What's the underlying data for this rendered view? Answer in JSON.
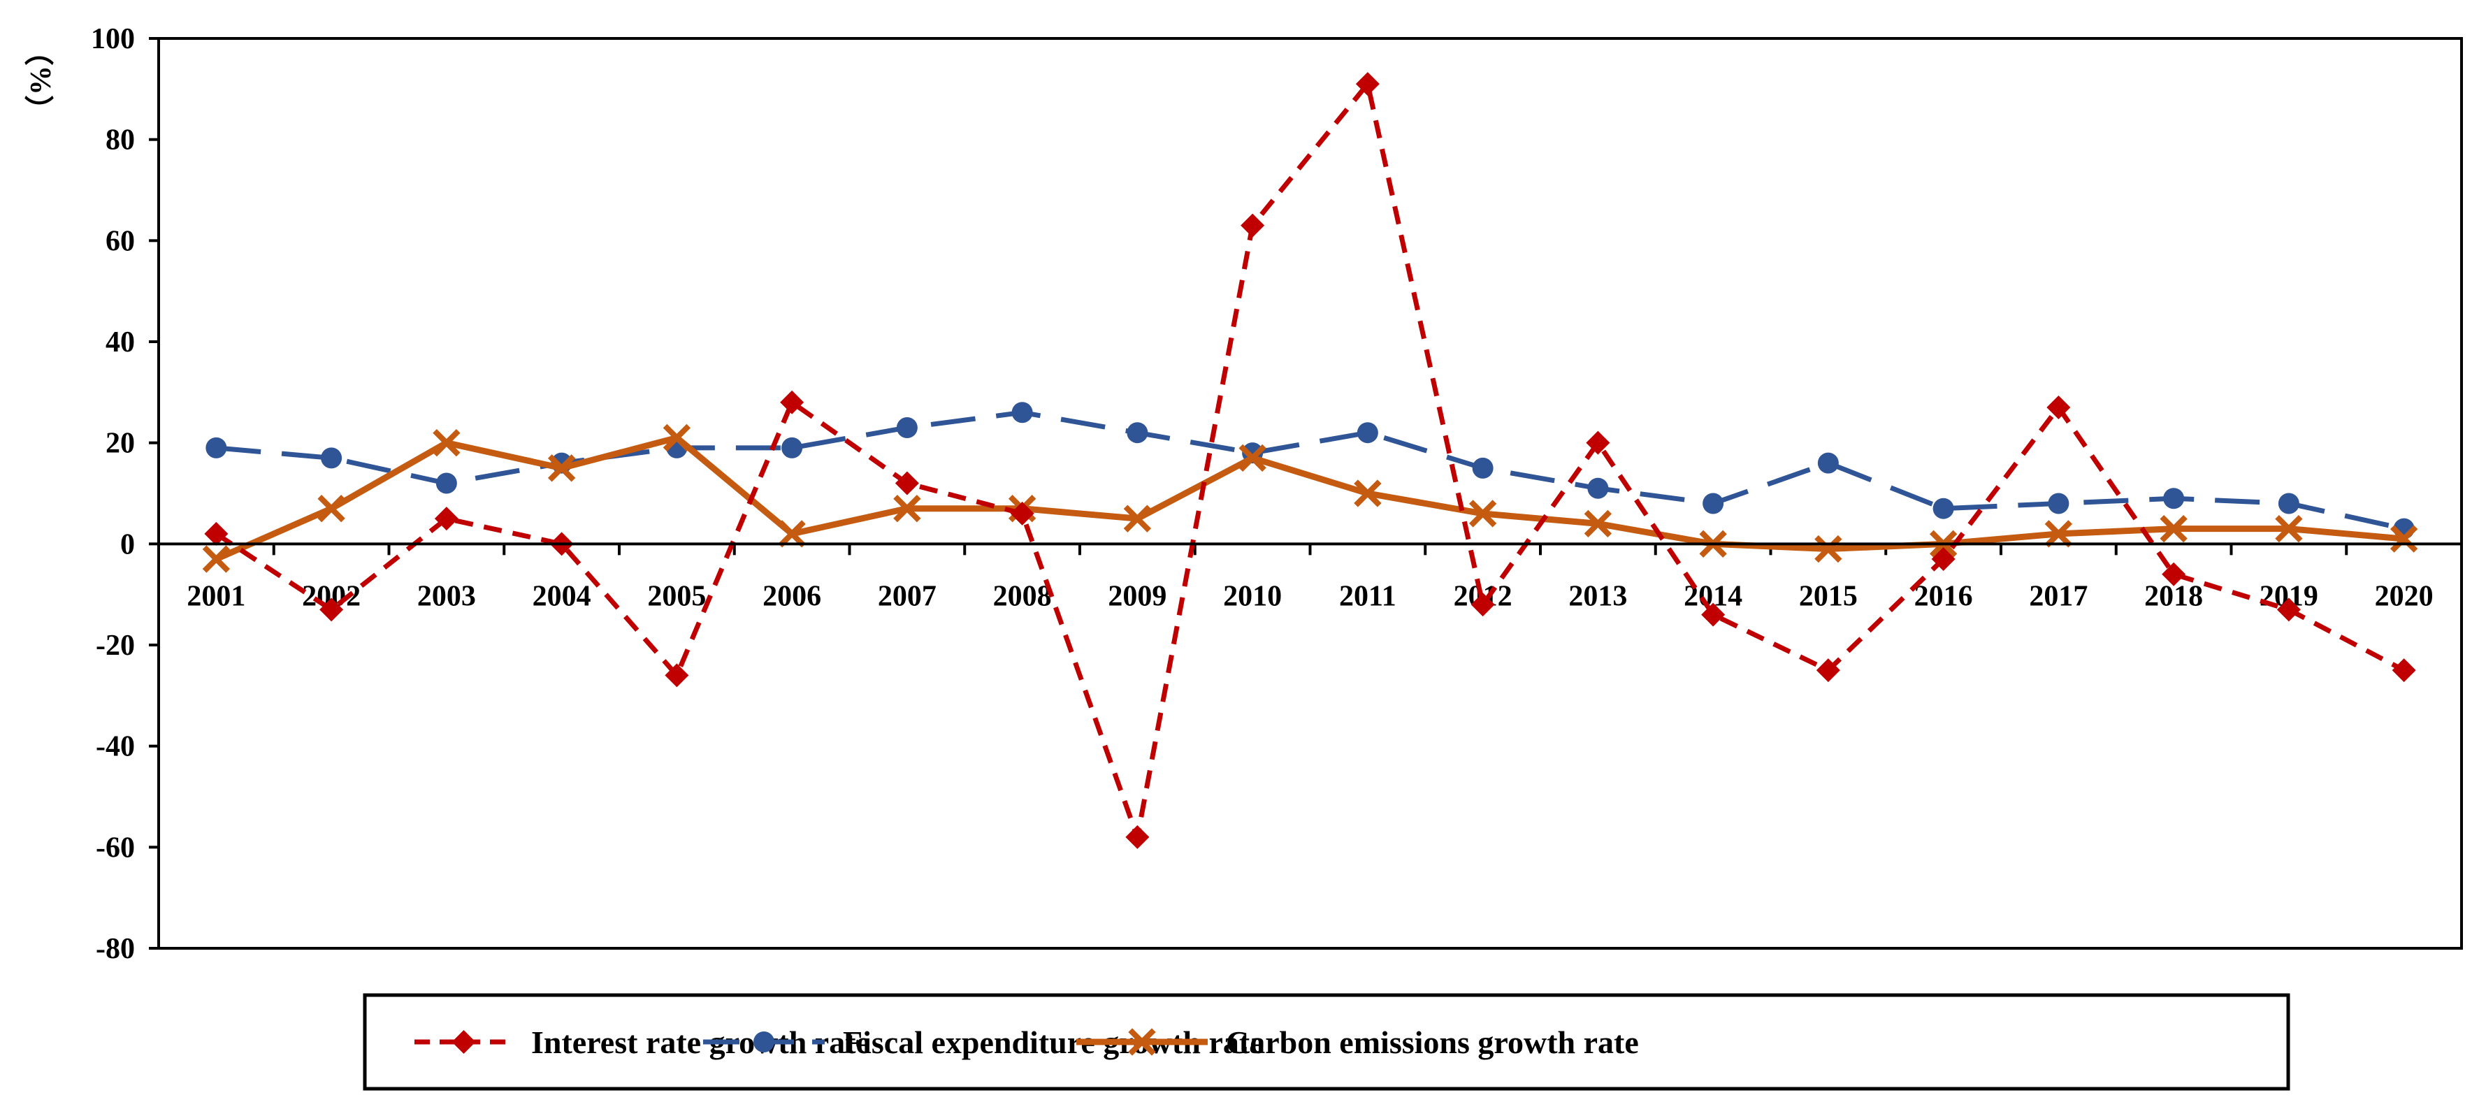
{
  "chart_data": {
    "type": "line",
    "title": "",
    "xlabel": "",
    "ylabel": "（%）",
    "ylim": [
      -80,
      100
    ],
    "yticks": [
      -80,
      -60,
      -40,
      -20,
      0,
      20,
      40,
      60,
      80,
      100
    ],
    "grid": false,
    "legend_position": "bottom",
    "categories": [
      "2001",
      "2002",
      "2003",
      "2004",
      "2005",
      "2006",
      "2007",
      "2008",
      "2009",
      "2010",
      "2011",
      "2012",
      "2013",
      "2014",
      "2015",
      "2016",
      "2017",
      "2018",
      "2019",
      "2020"
    ],
    "series": [
      {
        "name": "Interest rate growth rate",
        "color": "#C00000",
        "line_style": "dashed",
        "marker": "diamond",
        "values": [
          2,
          -13,
          5,
          0,
          -26,
          28,
          12,
          6,
          -58,
          63,
          91,
          -12,
          20,
          -14,
          -25,
          -3,
          27,
          -6,
          -13,
          -25
        ]
      },
      {
        "name": "Fiscal expenditure growth rate",
        "color": "#2F5597",
        "line_style": "long-dash",
        "marker": "circle",
        "values": [
          19,
          17,
          12,
          16,
          19,
          19,
          23,
          26,
          22,
          18,
          22,
          15,
          11,
          8,
          16,
          7,
          8,
          9,
          8,
          3
        ]
      },
      {
        "name": "Carbon emissions growth rate",
        "color": "#C55A11",
        "line_style": "solid",
        "marker": "x",
        "values": [
          -3,
          7,
          20,
          15,
          21,
          2,
          7,
          7,
          5,
          17,
          10,
          6,
          4,
          0,
          -1,
          0,
          2,
          3,
          3,
          1
        ]
      }
    ]
  }
}
